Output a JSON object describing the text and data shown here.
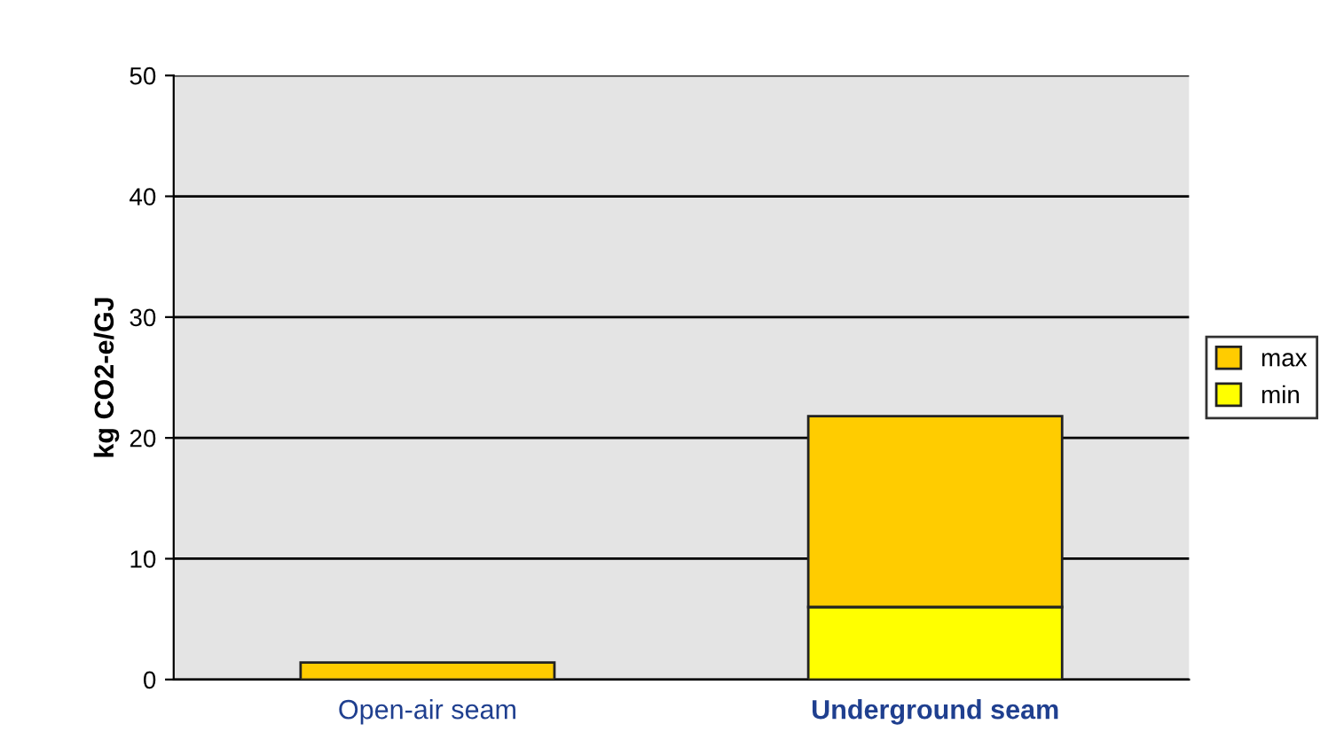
{
  "chart_data": {
    "type": "bar",
    "stacked": true,
    "ylabel": "kg CO2-e/GJ",
    "categories": [
      "Open-air seam",
      "Underground seam"
    ],
    "series": [
      {
        "name": "min",
        "color": "#ffff00",
        "values": [
          null,
          6.0
        ]
      },
      {
        "name": "max",
        "color": "#ffcc00",
        "values": [
          1.4,
          15.8
        ]
      }
    ],
    "ylim": [
      0,
      50
    ],
    "yticks": [
      0,
      10,
      20,
      30,
      40,
      50
    ],
    "grid": "y",
    "legend": "right"
  }
}
